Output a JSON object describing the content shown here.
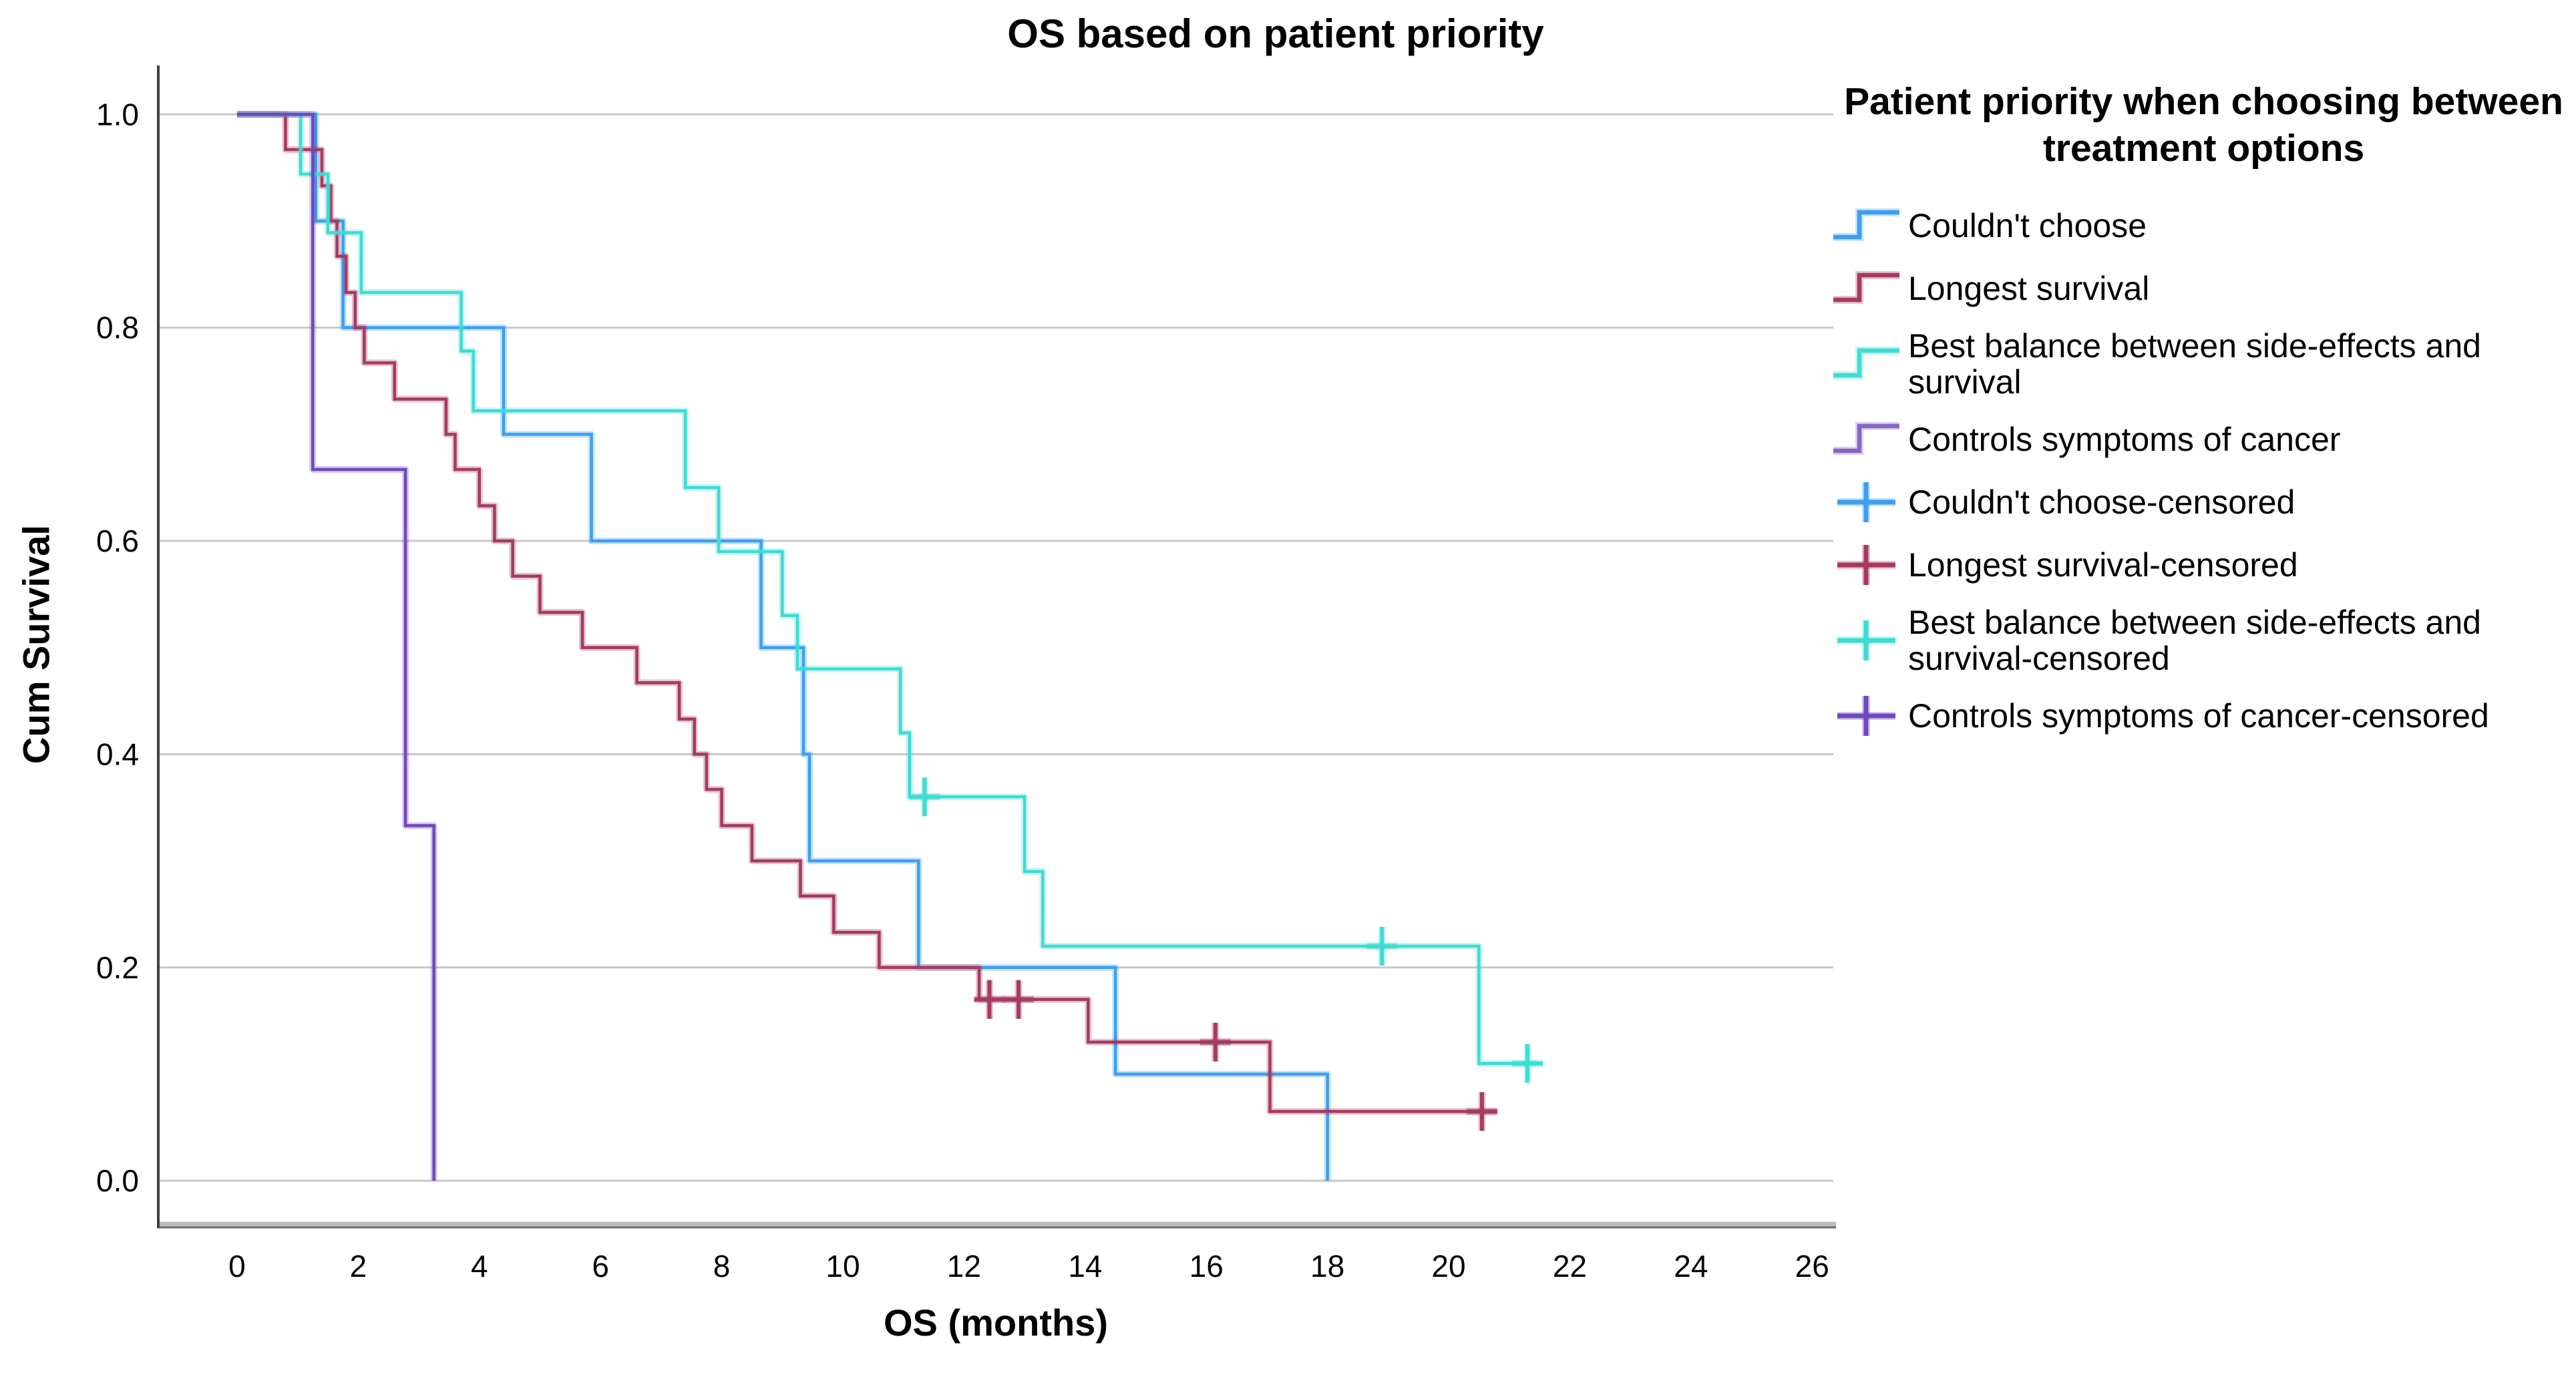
{
  "page": {
    "background": "#ffffff"
  },
  "chart_data": {
    "type": "line",
    "subtype": "kaplan_meier_step",
    "title": "OS based on patient priority",
    "xlabel": "OS (months)",
    "ylabel": "Cum Survival",
    "x_ticks": [
      0,
      2,
      4,
      6,
      8,
      10,
      12,
      14,
      16,
      18,
      20,
      22,
      24,
      26
    ],
    "y_ticks": [
      "1.0",
      "0.8",
      "0.6",
      "0.4",
      "0.2",
      "0.0"
    ],
    "xlim": [
      -1.3,
      26.35
    ],
    "ylim": [
      -0.0425,
      1.0415
    ],
    "grid": "horizontal",
    "gridline_color": "#c8c8c8",
    "axis_color_light": "#bdbdbd",
    "axis_color_dark": "#6e6e6e",
    "legend_position": "right",
    "series": [
      {
        "name": "Couldn't choose",
        "color": "#3d9ff1",
        "points": [
          [
            1.3,
            0.9
          ],
          [
            1.75,
            0.8
          ],
          [
            4.4,
            0.7
          ],
          [
            5.85,
            0.6
          ],
          [
            8.65,
            0.5
          ],
          [
            9.35,
            0.4
          ],
          [
            9.45,
            0.3
          ],
          [
            11.25,
            0.2
          ],
          [
            14.5,
            0.1
          ],
          [
            18.0,
            0.0
          ]
        ],
        "censors": [],
        "end": 18.0
      },
      {
        "name": "Longest survival",
        "color": "#a63a5f",
        "points": [
          [
            0.8,
            0.967
          ],
          [
            1.4,
            0.933
          ],
          [
            1.55,
            0.9
          ],
          [
            1.65,
            0.867
          ],
          [
            1.8,
            0.833
          ],
          [
            1.95,
            0.8
          ],
          [
            2.1,
            0.767
          ],
          [
            2.6,
            0.733
          ],
          [
            3.45,
            0.7
          ],
          [
            3.6,
            0.667
          ],
          [
            4.0,
            0.633
          ],
          [
            4.25,
            0.6
          ],
          [
            4.55,
            0.567
          ],
          [
            5.0,
            0.533
          ],
          [
            5.7,
            0.5
          ],
          [
            6.6,
            0.467
          ],
          [
            7.3,
            0.433
          ],
          [
            7.55,
            0.4
          ],
          [
            7.75,
            0.367
          ],
          [
            8.0,
            0.333
          ],
          [
            8.5,
            0.3
          ],
          [
            9.3,
            0.267
          ],
          [
            9.85,
            0.233
          ],
          [
            10.6,
            0.2
          ],
          [
            12.25,
            0.17
          ],
          [
            14.05,
            0.13
          ],
          [
            17.05,
            0.065
          ]
        ],
        "censors": [
          [
            12.42,
            0.17
          ],
          [
            12.9,
            0.17
          ],
          [
            16.15,
            0.13
          ],
          [
            20.55,
            0.065
          ]
        ],
        "end": 20.8
      },
      {
        "name": "Best balance between side-effects and survival",
        "color": "#3edcd3",
        "points": [
          [
            1.05,
            0.944
          ],
          [
            1.5,
            0.889
          ],
          [
            2.05,
            0.833
          ],
          [
            3.7,
            0.778
          ],
          [
            3.9,
            0.722
          ],
          [
            7.4,
            0.65
          ],
          [
            7.95,
            0.59
          ],
          [
            9.0,
            0.53
          ],
          [
            9.25,
            0.48
          ],
          [
            10.95,
            0.42
          ],
          [
            11.1,
            0.36
          ],
          [
            13.0,
            0.29
          ],
          [
            13.3,
            0.22
          ],
          [
            20.5,
            0.11
          ]
        ],
        "censors": [
          [
            11.35,
            0.36
          ],
          [
            18.9,
            0.22
          ],
          [
            21.3,
            0.11
          ]
        ],
        "end": 21.45
      },
      {
        "name": "Controls symptoms of cancer",
        "color": "#6f49bc",
        "points": [
          [
            1.25,
            0.667
          ],
          [
            2.78,
            0.333
          ],
          [
            3.25,
            0.0
          ]
        ],
        "censors": [],
        "end": 3.25
      }
    ]
  },
  "legend": {
    "title": "Patient priority when choosing between treatment options",
    "items": [
      {
        "label": "Couldn't choose",
        "color": "#3d9ff1",
        "type": "line"
      },
      {
        "label": "Longest survival",
        "color": "#a63a5f",
        "type": "line"
      },
      {
        "label": "Best balance between side-effects and survival",
        "color": "#3edcd3",
        "type": "line"
      },
      {
        "label": "Controls symptoms of cancer",
        "color": "#8767c4",
        "type": "line"
      },
      {
        "label": "Couldn't choose-censored",
        "color": "#3d9ff1",
        "type": "censor"
      },
      {
        "label": "Longest survival-censored",
        "color": "#a63a5f",
        "type": "censor"
      },
      {
        "label": "Best balance between side-effects and survival-censored",
        "color": "#3edcd3",
        "type": "censor"
      },
      {
        "label": "Controls symptoms of cancer-censored",
        "color": "#6f49bc",
        "type": "censor"
      }
    ]
  }
}
